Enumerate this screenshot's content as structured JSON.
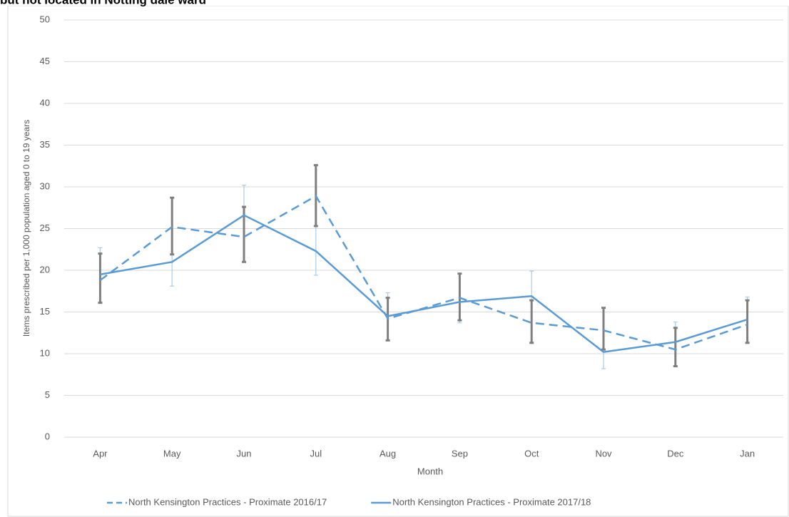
{
  "chart_data": {
    "type": "line",
    "title": "but not located in Notting dale ward",
    "x_label": "Month",
    "y_label": "Items prescribed per 1,000 population aged 0 to 19 years",
    "categories": [
      "Apr",
      "May",
      "Jun",
      "Jul",
      "Aug",
      "Sep",
      "Oct",
      "Nov",
      "Dec",
      "Jan"
    ],
    "ylim": [
      0,
      50
    ],
    "yticks": [
      0,
      5,
      10,
      15,
      20,
      25,
      30,
      35,
      40,
      45,
      50
    ],
    "grid": true,
    "legend": "bottom",
    "series": [
      {
        "name": "North Kensington Practices - Proximate 2016/17",
        "color": "#5b9bd5",
        "line_style": "dashed",
        "error_color": "#a9cbe9",
        "values": [
          18.8,
          25.2,
          24.0,
          28.9,
          14.2,
          16.7,
          13.7,
          12.8,
          10.5,
          13.5
        ],
        "lower": [
          16.2,
          18.1,
          21.0,
          19.4,
          11.5,
          13.7,
          11.3,
          8.2,
          8.5,
          11.3
        ],
        "upper": [
          22.7,
          28.7,
          30.2,
          32.6,
          17.3,
          19.6,
          19.9,
          15.5,
          13.8,
          16.8
        ]
      },
      {
        "name": "North Kensington Practices - Proximate 2017/18",
        "color": "#5b9bd5",
        "line_style": "solid",
        "error_color": "#7f7f7f",
        "values": [
          19.5,
          21.0,
          26.6,
          22.3,
          14.5,
          16.2,
          16.9,
          10.2,
          11.4,
          14.1
        ],
        "lower": [
          16.1,
          21.9,
          21.0,
          25.3,
          11.6,
          14.0,
          11.3,
          10.5,
          8.5,
          11.3
        ],
        "upper": [
          22.0,
          28.7,
          27.6,
          32.6,
          16.7,
          19.6,
          16.4,
          15.5,
          13.1,
          16.4
        ]
      }
    ]
  }
}
